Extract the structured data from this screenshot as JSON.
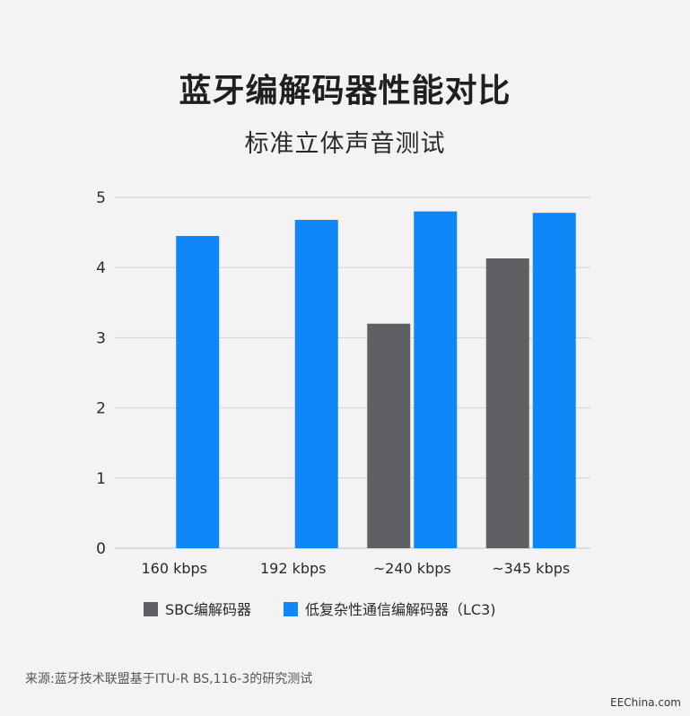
{
  "title": "蓝牙编解码器性能对比",
  "subtitle": "标准立体声音测试",
  "source": "来源:蓝牙技术联盟基于ITU-R BS,116-3的研究测试",
  "watermark": "EEChina.com",
  "colors": {
    "sbc": "#5f6063",
    "lc3": "#0f87f7",
    "grid": "#d2d2d2",
    "background": "#f3f3f3"
  },
  "chart_data": {
    "type": "bar",
    "title": "蓝牙编解码器性能对比",
    "subtitle": "标准立体声音测试",
    "categories": [
      "160 kbps",
      "192 kbps",
      "~240 kbps",
      "~345 kbps"
    ],
    "series": [
      {
        "name": "SBC编解码器",
        "values": [
          null,
          null,
          3.2,
          4.13
        ],
        "color": "#5f6063"
      },
      {
        "name": "低复杂性通信编解码器（LC3)",
        "values": [
          4.45,
          4.68,
          4.8,
          4.78
        ],
        "color": "#0f87f7"
      }
    ],
    "ylim": [
      0,
      5
    ],
    "yticks": [
      0,
      1,
      2,
      3,
      4,
      5
    ],
    "grid": true,
    "legend": "bottom"
  }
}
